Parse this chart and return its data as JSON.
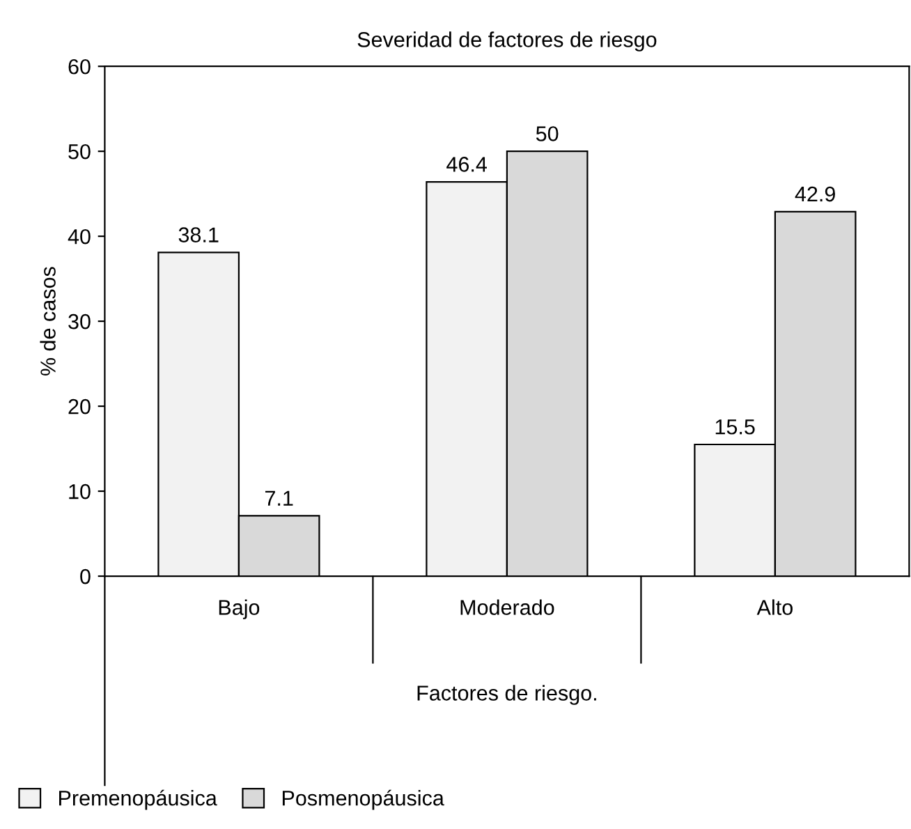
{
  "chart_data": {
    "type": "bar",
    "title": "Severidad de factores de riesgo",
    "xlabel": "Factores de riesgo.",
    "ylabel": "% de casos",
    "categories": [
      "Bajo",
      "Moderado",
      "Alto"
    ],
    "series": [
      {
        "name": "Premenopáusica",
        "color": "#f2f2f2",
        "values": [
          38.1,
          46.4,
          15.5
        ]
      },
      {
        "name": "Posmenopáusica",
        "color": "#d9d9d9",
        "values": [
          7.1,
          50,
          42.9
        ]
      }
    ],
    "ylim": [
      0,
      60
    ],
    "yticks": [
      0,
      10,
      20,
      30,
      40,
      50,
      60
    ],
    "grid": false,
    "legend": "bottom left",
    "data_labels": true
  }
}
